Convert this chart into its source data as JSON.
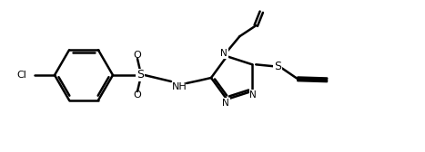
{
  "background_color": "#ffffff",
  "line_color": "#000000",
  "line_width": 1.8,
  "figsize": [
    4.67,
    1.68
  ],
  "dpi": 100,
  "xlim": [
    0,
    4.67
  ],
  "ylim": [
    0,
    1.68
  ]
}
